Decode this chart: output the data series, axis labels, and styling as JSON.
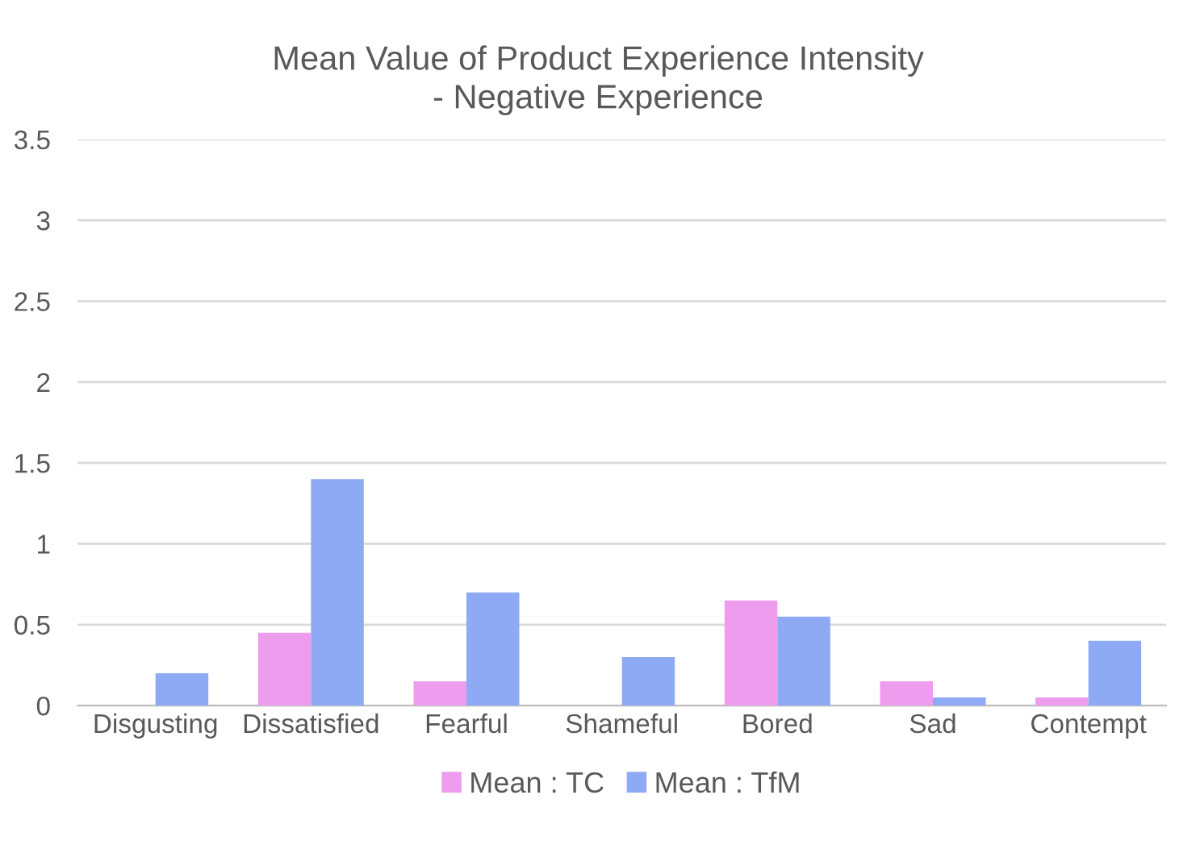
{
  "chart_data": {
    "type": "bar",
    "title": "Mean Value of Product Experience Intensity\n- Negative Experience",
    "categories": [
      "Disgusting",
      "Dissatisfied",
      "Fearful",
      "Shameful",
      "Bored",
      "Sad",
      "Contempt"
    ],
    "series": [
      {
        "name": "Mean : TC",
        "color": "#ee9cee",
        "values": [
          0,
          0.45,
          0.15,
          0,
          0.65,
          0.15,
          0.05
        ]
      },
      {
        "name": "Mean : TfM",
        "color": "#8eaaf4",
        "values": [
          0.2,
          1.4,
          0.7,
          0.3,
          0.55,
          0.05,
          0.4
        ]
      }
    ],
    "ylim": [
      0,
      3.5
    ],
    "yticks": [
      0,
      0.5,
      1,
      1.5,
      2,
      2.5,
      3,
      3.5
    ],
    "grid": "y",
    "legend": "bottom"
  }
}
